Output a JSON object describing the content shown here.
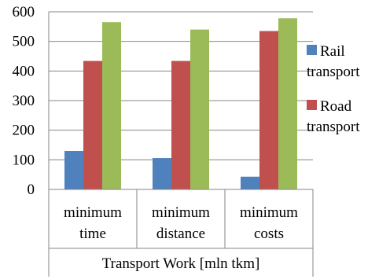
{
  "chart_data": {
    "type": "bar",
    "title": "",
    "xlabel": "Transport Work [mln tkm]",
    "ylabel": "",
    "ylim": [
      0,
      600
    ],
    "yticks": [
      0,
      100,
      200,
      300,
      400,
      500,
      600
    ],
    "grid": true,
    "legend_position": "right",
    "categories": [
      [
        "minimum",
        "time"
      ],
      [
        "minimum",
        "distance"
      ],
      [
        "minimum",
        "costs"
      ]
    ],
    "series": [
      {
        "name": "Rail transport",
        "legend_lines": [
          "Rail",
          "transport"
        ],
        "color": "#4f81bd",
        "values": [
          130,
          106,
          43
        ]
      },
      {
        "name": "Road transport",
        "legend_lines": [
          "Road",
          "transport"
        ],
        "color": "#c0504d",
        "values": [
          434,
          434,
          535
        ]
      },
      {
        "name": "",
        "legend_lines": [],
        "color": "#9bbb59",
        "values": [
          565,
          540,
          578
        ]
      }
    ]
  }
}
